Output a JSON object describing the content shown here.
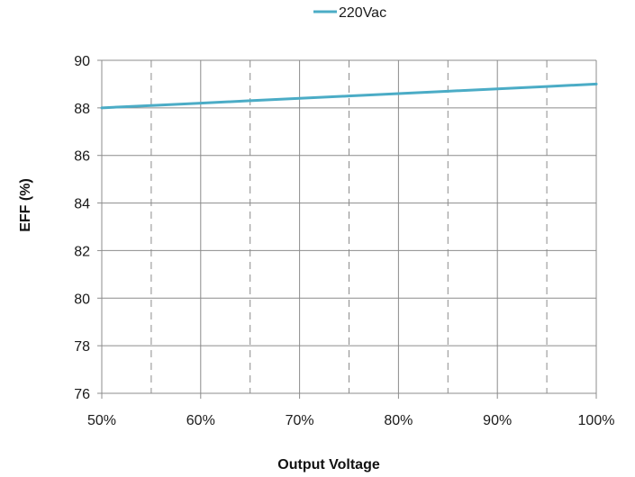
{
  "chart_data": {
    "type": "line",
    "title": "",
    "xlabel": "Output Voltage",
    "ylabel": "EFF (%)",
    "x": [
      50,
      55,
      60,
      65,
      70,
      75,
      80,
      85,
      90,
      95,
      100
    ],
    "x_tick_values": [
      50,
      60,
      70,
      80,
      90,
      100
    ],
    "x_tick_labels": [
      "50%",
      "60%",
      "70%",
      "80%",
      "90%",
      "100%"
    ],
    "y_ticks": [
      76,
      78,
      80,
      82,
      84,
      86,
      88,
      90
    ],
    "y_tick_labels": [
      "76",
      "78",
      "80",
      "82",
      "84",
      "86",
      "88",
      "90"
    ],
    "xlim": [
      50,
      100
    ],
    "ylim": [
      76,
      90
    ],
    "grid": {
      "horizontal": true,
      "vertical_major": true,
      "vertical_minor_dashed": true
    },
    "legend_position": "top-center",
    "series": [
      {
        "name": "220Vac",
        "color": "#4bacc6",
        "values": [
          88.0,
          88.1,
          88.2,
          88.3,
          88.4,
          88.5,
          88.6,
          88.7,
          88.8,
          88.9,
          89.0
        ]
      }
    ]
  }
}
